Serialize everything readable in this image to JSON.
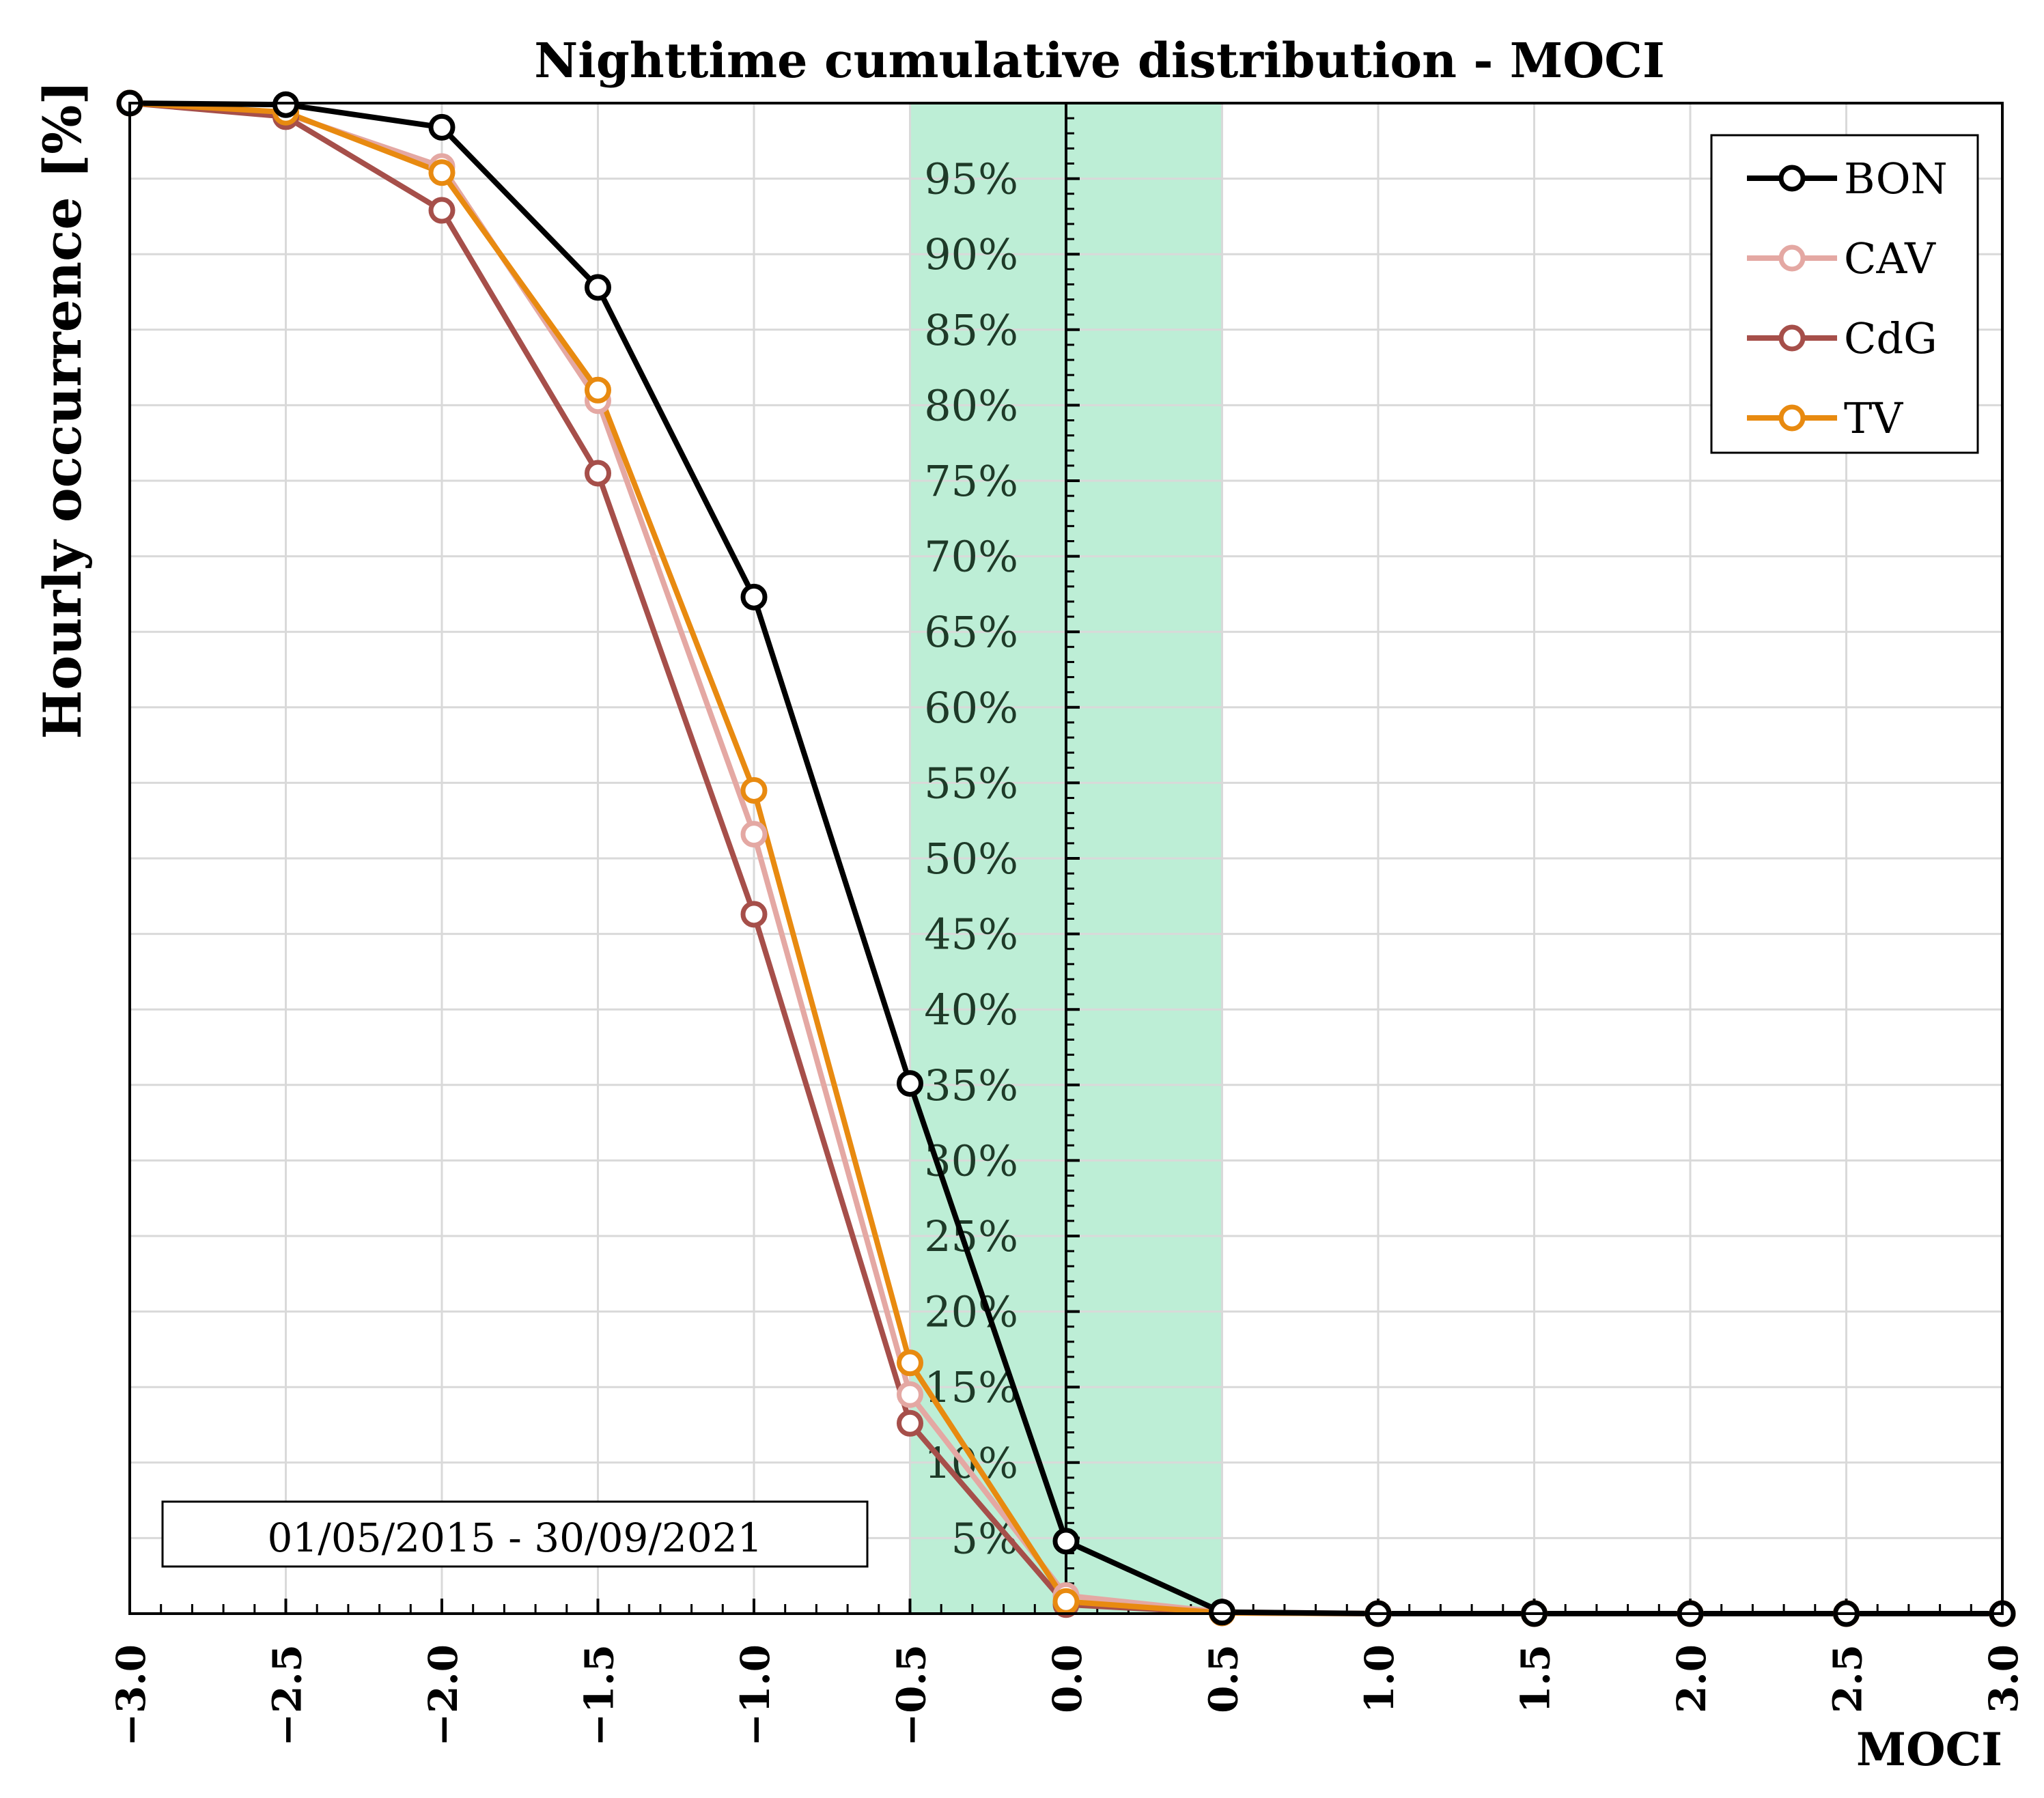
{
  "chart_data": {
    "type": "line",
    "title": "Nighttime cumulative distribution - MOCI",
    "xlabel": "MOCI",
    "ylabel": "Hourly occurrence [%]",
    "annotation": "01/05/2015 - 30/09/2021",
    "xlim": [
      -3.0,
      3.0
    ],
    "ylim": [
      0,
      100
    ],
    "x_ticks": [
      "−3.0",
      "−2.5",
      "−2.0",
      "−1.5",
      "−1.0",
      "−0.5",
      "0.0",
      "0.5",
      "1.0",
      "1.5",
      "2.0",
      "2.5",
      "3.0"
    ],
    "y_tick_values": [
      5,
      10,
      15,
      20,
      25,
      30,
      35,
      40,
      45,
      50,
      55,
      60,
      65,
      70,
      75,
      80,
      85,
      90,
      95
    ],
    "y_tick_labels": [
      "5%",
      "10%",
      "15%",
      "20%",
      "25%",
      "30%",
      "35%",
      "40%",
      "45%",
      "50%",
      "55%",
      "60%",
      "65%",
      "70%",
      "75%",
      "80%",
      "85%",
      "90%",
      "95%"
    ],
    "shaded_band": {
      "x_from": -0.5,
      "x_to": 0.5,
      "color": "#bdeed6",
      "edge": "#90dcb5"
    },
    "grid": true,
    "legend_position": "top-right",
    "x": [
      -3.0,
      -2.5,
      -2.0,
      -1.5,
      -1.0,
      -0.5,
      0.0,
      0.5,
      1.0,
      1.5,
      2.0,
      2.5,
      3.0
    ],
    "series": [
      {
        "name": "BON",
        "color": "#000000",
        "values": [
          100,
          99.9,
          98.4,
          87.8,
          67.3,
          35.1,
          4.8,
          0.1,
          0,
          0,
          0,
          0,
          0
        ]
      },
      {
        "name": "CAV",
        "color": "#e4a8a3",
        "values": [
          100,
          99.3,
          95.8,
          80.3,
          51.6,
          14.5,
          1.2,
          0.1,
          0,
          0,
          0,
          0,
          0
        ]
      },
      {
        "name": "CdG",
        "color": "#a64f4a",
        "values": [
          100,
          99.1,
          92.9,
          75.5,
          46.3,
          12.6,
          0.6,
          0.05,
          0,
          0,
          0,
          0,
          0
        ]
      },
      {
        "name": "TV",
        "color": "#e88a10",
        "values": [
          100,
          99.4,
          95.4,
          81.0,
          54.5,
          16.6,
          0.8,
          0.05,
          0,
          0,
          0,
          0,
          0
        ]
      }
    ]
  }
}
